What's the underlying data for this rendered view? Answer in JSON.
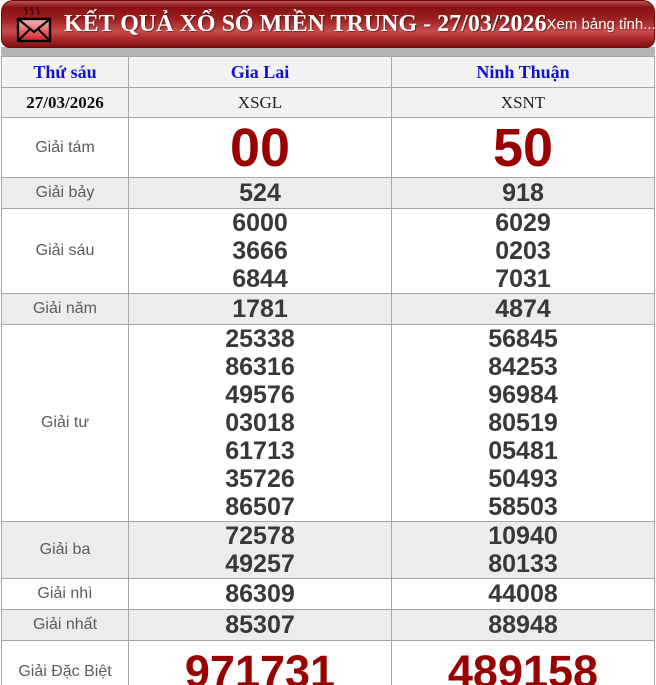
{
  "header": {
    "title": "KẾT QUẢ XỔ SỐ MIỀN TRUNG - 27/03/2026",
    "link_label": "Xem bảng tỉnh...",
    "icons": {
      "left": "envelope-icon",
      "right": "bar-chart-icon"
    }
  },
  "colors": {
    "header_red": "#9c1f1f",
    "big_number_red": "#990000",
    "column_header_blue": "#1212cc",
    "number_gray": "#383838",
    "row_stripe_gray": "#ececec"
  },
  "table": {
    "day_header": "Thứ sáu",
    "columns": [
      "Gia Lai",
      "Ninh Thuận"
    ],
    "date": "27/03/2026",
    "codes": [
      "XSGL",
      "XSNT"
    ],
    "prizes": [
      {
        "label": "Giải tám",
        "size": "xl",
        "values": [
          [
            "00"
          ],
          [
            "50"
          ]
        ]
      },
      {
        "label": "Giải bảy",
        "values": [
          [
            "524"
          ],
          [
            "918"
          ]
        ]
      },
      {
        "label": "Giải sáu",
        "values": [
          [
            "6000",
            "3666",
            "6844"
          ],
          [
            "6029",
            "0203",
            "7031"
          ]
        ]
      },
      {
        "label": "Giải năm",
        "values": [
          [
            "1781"
          ],
          [
            "4874"
          ]
        ]
      },
      {
        "label": "Giải tư",
        "values": [
          [
            "25338",
            "86316",
            "49576",
            "03018",
            "61713",
            "35726",
            "86507"
          ],
          [
            "56845",
            "84253",
            "96984",
            "80519",
            "05481",
            "50493",
            "58503"
          ]
        ]
      },
      {
        "label": "Giải ba",
        "values": [
          [
            "72578",
            "49257"
          ],
          [
            "10940",
            "80133"
          ]
        ]
      },
      {
        "label": "Giải nhì",
        "values": [
          [
            "86309"
          ],
          [
            "44008"
          ]
        ]
      },
      {
        "label": "Giải nhất",
        "values": [
          [
            "85307"
          ],
          [
            "88948"
          ]
        ]
      },
      {
        "label": "Giải Đặc Biệt",
        "size": "lg",
        "values": [
          [
            "971731"
          ],
          [
            "489158"
          ]
        ]
      }
    ]
  }
}
